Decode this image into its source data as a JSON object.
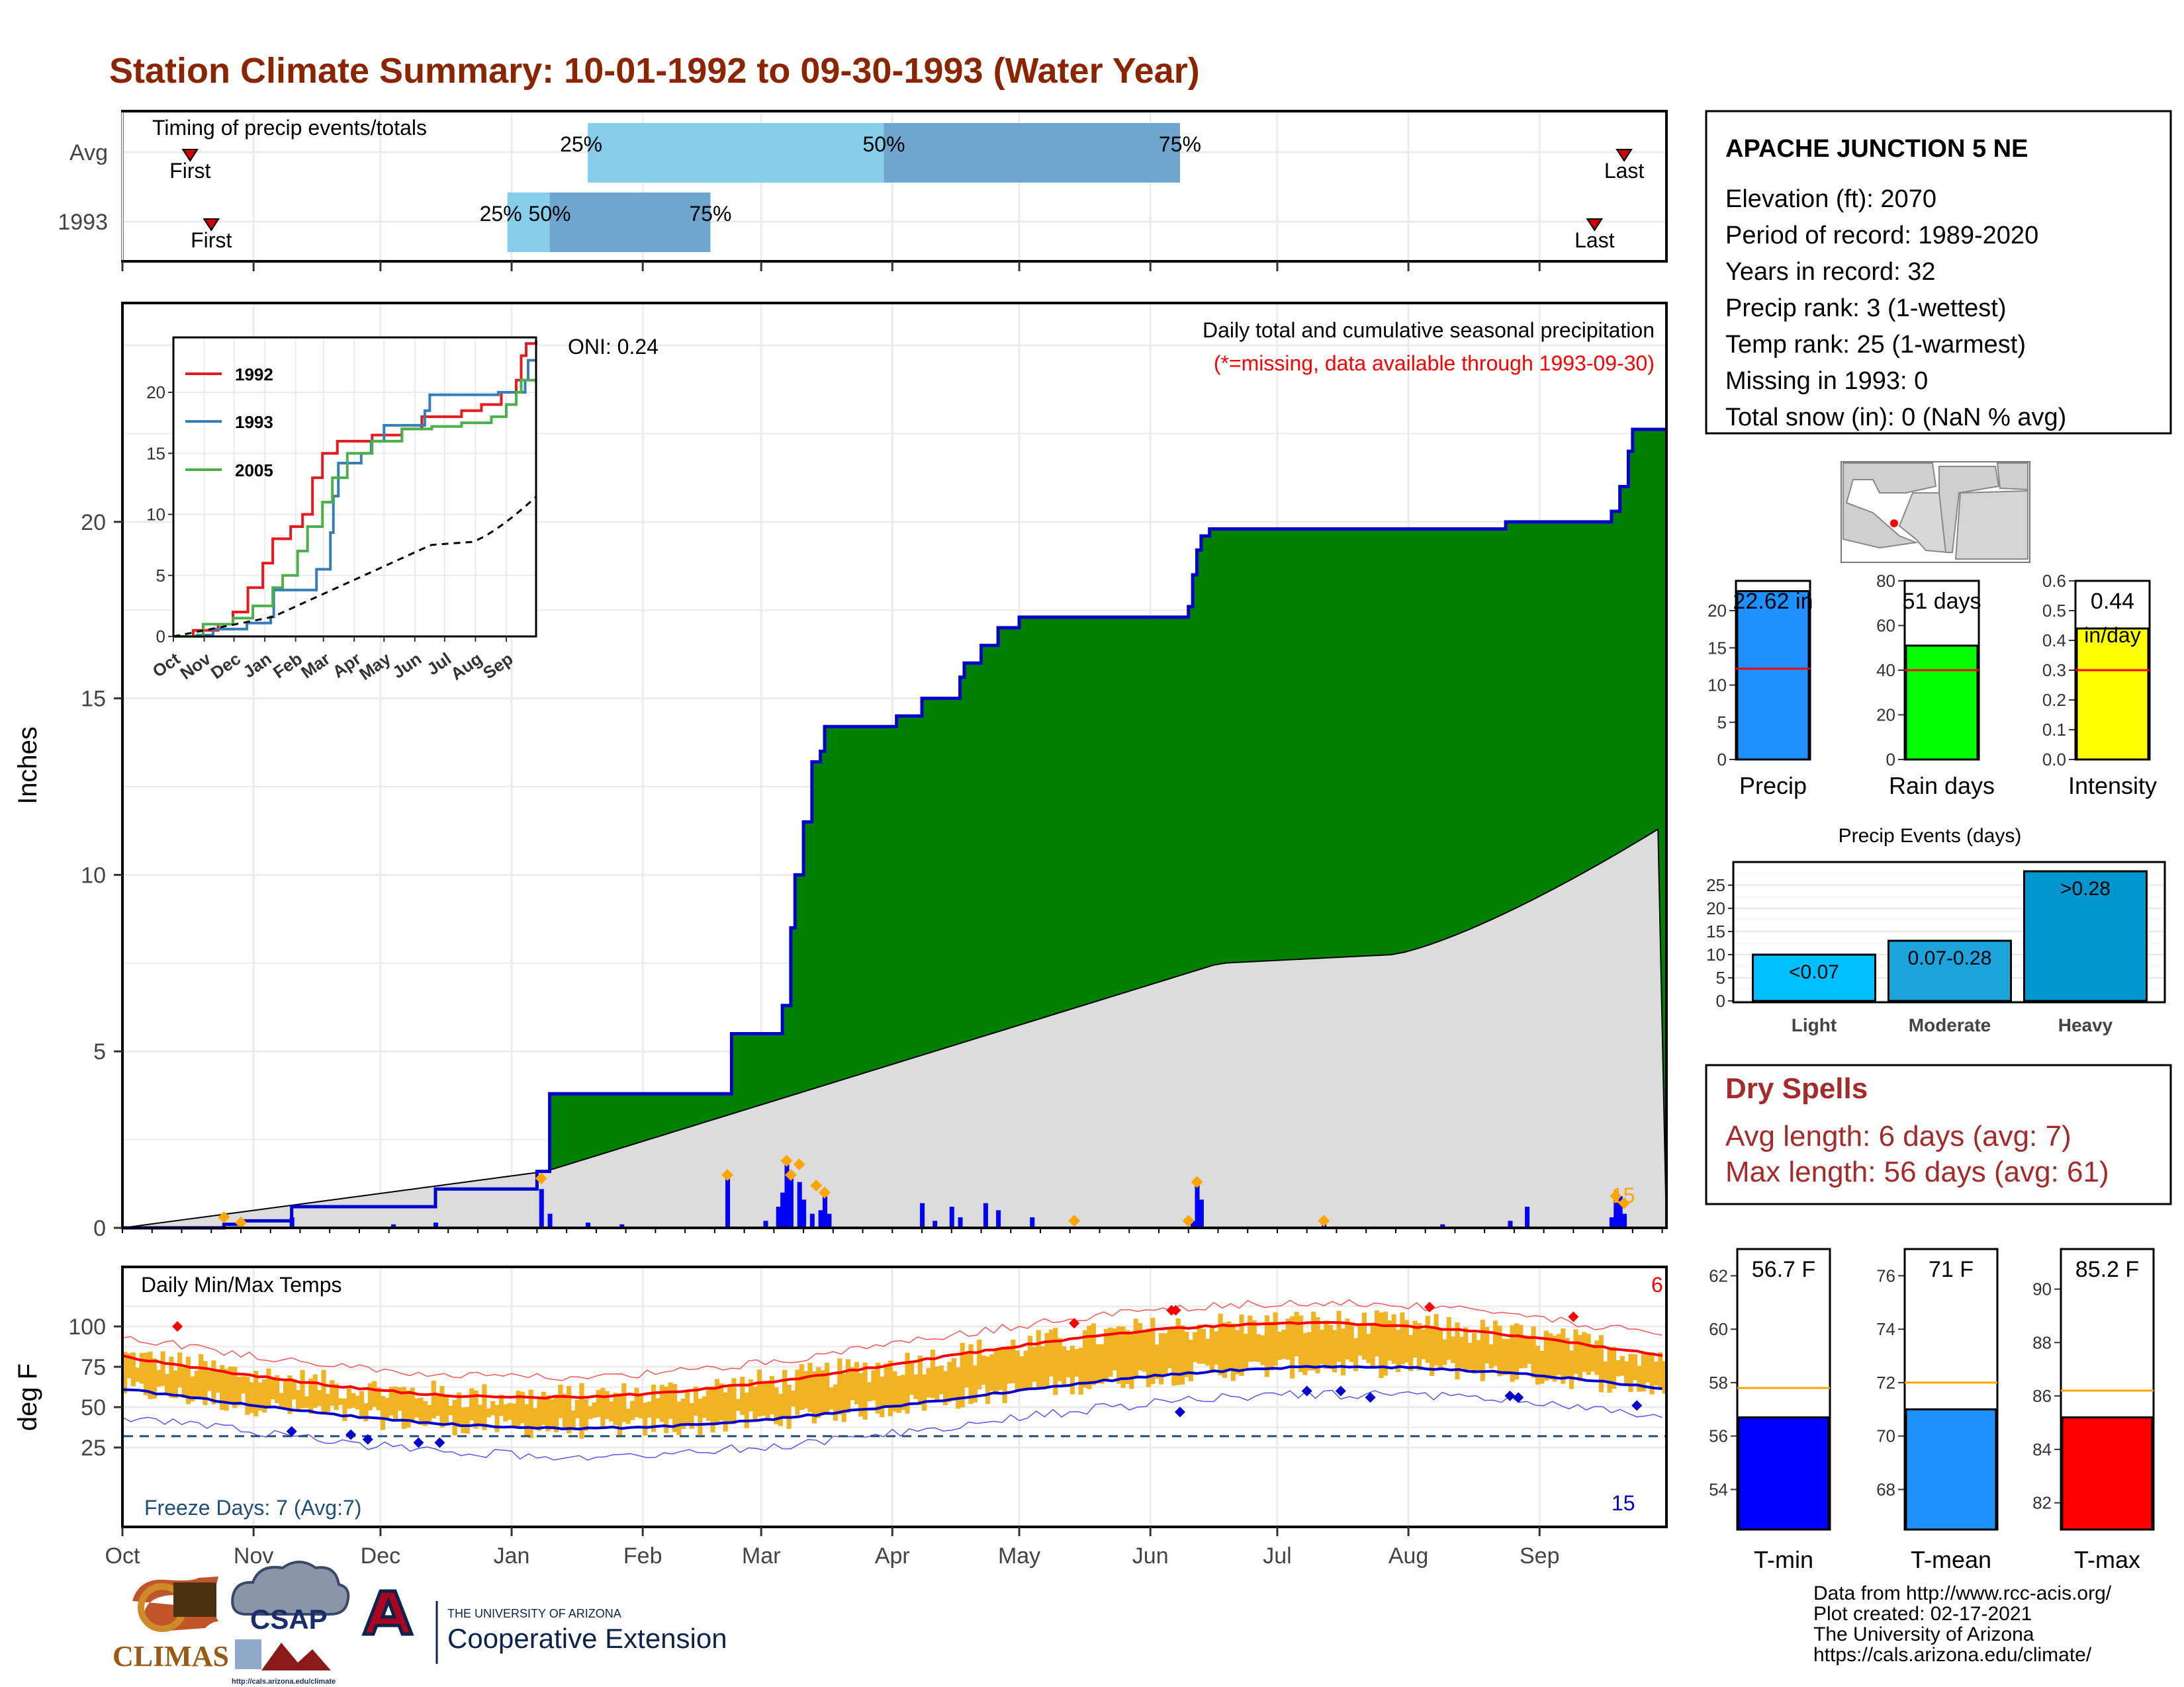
{
  "title": "Station Climate Summary: 10-01-1992 to 09-30-1993 (Water Year)",
  "timing": {
    "label": "Timing of precip events/totals",
    "rows": [
      {
        "name": "Avg",
        "first_doy": 16,
        "last_doy": 355,
        "p25_doy": 110,
        "p50_doy": 180,
        "p75_doy": 250
      },
      {
        "name": "1993",
        "first_doy": 21,
        "last_doy": 348,
        "p25_doy": 91,
        "p50_doy": 101,
        "p75_doy": 139
      }
    ],
    "first_label": "First",
    "last_label": "Last",
    "pct_labels": [
      "25%",
      "50%",
      "75%"
    ]
  },
  "precip_chart": {
    "ylabel": "Inches",
    "yticks": [
      0,
      5,
      10,
      15,
      20
    ],
    "oni_label": "ONI: 0.24",
    "annotation": "Daily total and cumulative seasonal precipitation",
    "note": "(*=missing, data available through 1993-09-30)",
    "corner_count": "15",
    "colors": {
      "cumulative": "#008000",
      "line": "#0000cd",
      "avg": "#dcdcdc",
      "deficit": "#8b5a14"
    }
  },
  "inset": {
    "legend": [
      "1992",
      "1993",
      "2005"
    ],
    "legend_colors": [
      "#e41a1c",
      "#377eb8",
      "#4daf4a"
    ],
    "yticks": [
      0,
      5,
      10,
      15,
      20
    ],
    "xticks": [
      "Oct",
      "Nov",
      "Dec",
      "Jan",
      "Feb",
      "Mar",
      "Apr",
      "May",
      "Jun",
      "Jul",
      "Aug",
      "Sep"
    ]
  },
  "station": {
    "name": "APACHE JUNCTION 5 NE",
    "lines": [
      "Elevation (ft): 2070",
      "Period of record: 1989-2020",
      "Years in record: 32",
      "Precip rank: 3 (1-wettest)",
      "Temp rank: 25 (1-warmest)",
      "Missing in 1993: 0",
      "Total snow (in): 0 (NaN % avg)"
    ]
  },
  "mini_bars": [
    {
      "name": "Precip",
      "value": 22.62,
      "avg": 12.2,
      "label": "22.62 in",
      "max": 24,
      "ticks": [
        0,
        5,
        10,
        15,
        20
      ],
      "color": "#1e90ff"
    },
    {
      "name": "Rain days",
      "value": 51,
      "avg": 40,
      "label": "51 days",
      "max": 80,
      "ticks": [
        0,
        20,
        40,
        60,
        80
      ],
      "color": "#00ff00"
    },
    {
      "name": "Intensity",
      "value": 0.44,
      "avg": 0.3,
      "label": "0.44",
      "label2": "in/day",
      "max": 0.6,
      "ticks": [
        "0.0",
        "0.1",
        "0.2",
        "0.3",
        "0.4",
        "0.5",
        "0.6"
      ],
      "color": "#ffff00"
    }
  ],
  "precip_events": {
    "title": "Precip Events (days)",
    "categories": [
      "Light",
      "Moderate",
      "Heavy"
    ],
    "values": [
      10,
      13,
      28
    ],
    "labels": [
      "<0.07",
      "0.07-0.28",
      ">0.28"
    ],
    "yticks": [
      0,
      5,
      10,
      15,
      20,
      25
    ],
    "colors": [
      "#00bfff",
      "#1ca3dc",
      "#0095cc"
    ]
  },
  "dry_spells": {
    "title": "Dry Spells",
    "avg_line": "Avg length: 6 days (avg: 7)",
    "max_line": "Max length: 56 days (avg: 61)"
  },
  "temp_chart": {
    "label": "Daily Min/Max Temps",
    "ylabel": "deg F",
    "yticks": [
      25,
      50,
      75,
      100
    ],
    "freeze_label": "Freeze Days: 7 (Avg:7)",
    "hot_count": "6",
    "cold_count": "15",
    "months": [
      "Oct",
      "Nov",
      "Dec",
      "Jan",
      "Feb",
      "Mar",
      "Apr",
      "May",
      "Jun",
      "Jul",
      "Aug",
      "Sep"
    ]
  },
  "temp_bars": [
    {
      "name": "T-min",
      "value": 56.7,
      "avg": 57.8,
      "label": "56.7 F",
      "min": 52.5,
      "max": 63,
      "ticks": [
        54,
        56,
        58,
        60,
        62
      ],
      "color": "#0000ff"
    },
    {
      "name": "T-mean",
      "value": 71.0,
      "avg": 72.0,
      "label": "71 F",
      "min": 66.5,
      "max": 77,
      "ticks": [
        68,
        70,
        72,
        74,
        76
      ],
      "color": "#1e90ff"
    },
    {
      "name": "T-max",
      "value": 85.2,
      "avg": 86.2,
      "label": "85.2 F",
      "min": 81,
      "max": 91.5,
      "ticks": [
        82,
        84,
        86,
        88,
        90
      ],
      "color": "#ff0000"
    }
  ],
  "footer": {
    "credits": [
      "Data from http://www.rcc-acis.org/",
      "Plot created: 02-17-2021",
      "The University of Arizona",
      "https://cals.arizona.edu/climate/"
    ],
    "climas": "CLIMAS",
    "csap": "CSAP",
    "csap_url": "http://cals.arizona.edu/climate",
    "ua_small": "THE UNIVERSITY OF ARIZONA",
    "ua_big": "Cooperative Extension"
  }
}
